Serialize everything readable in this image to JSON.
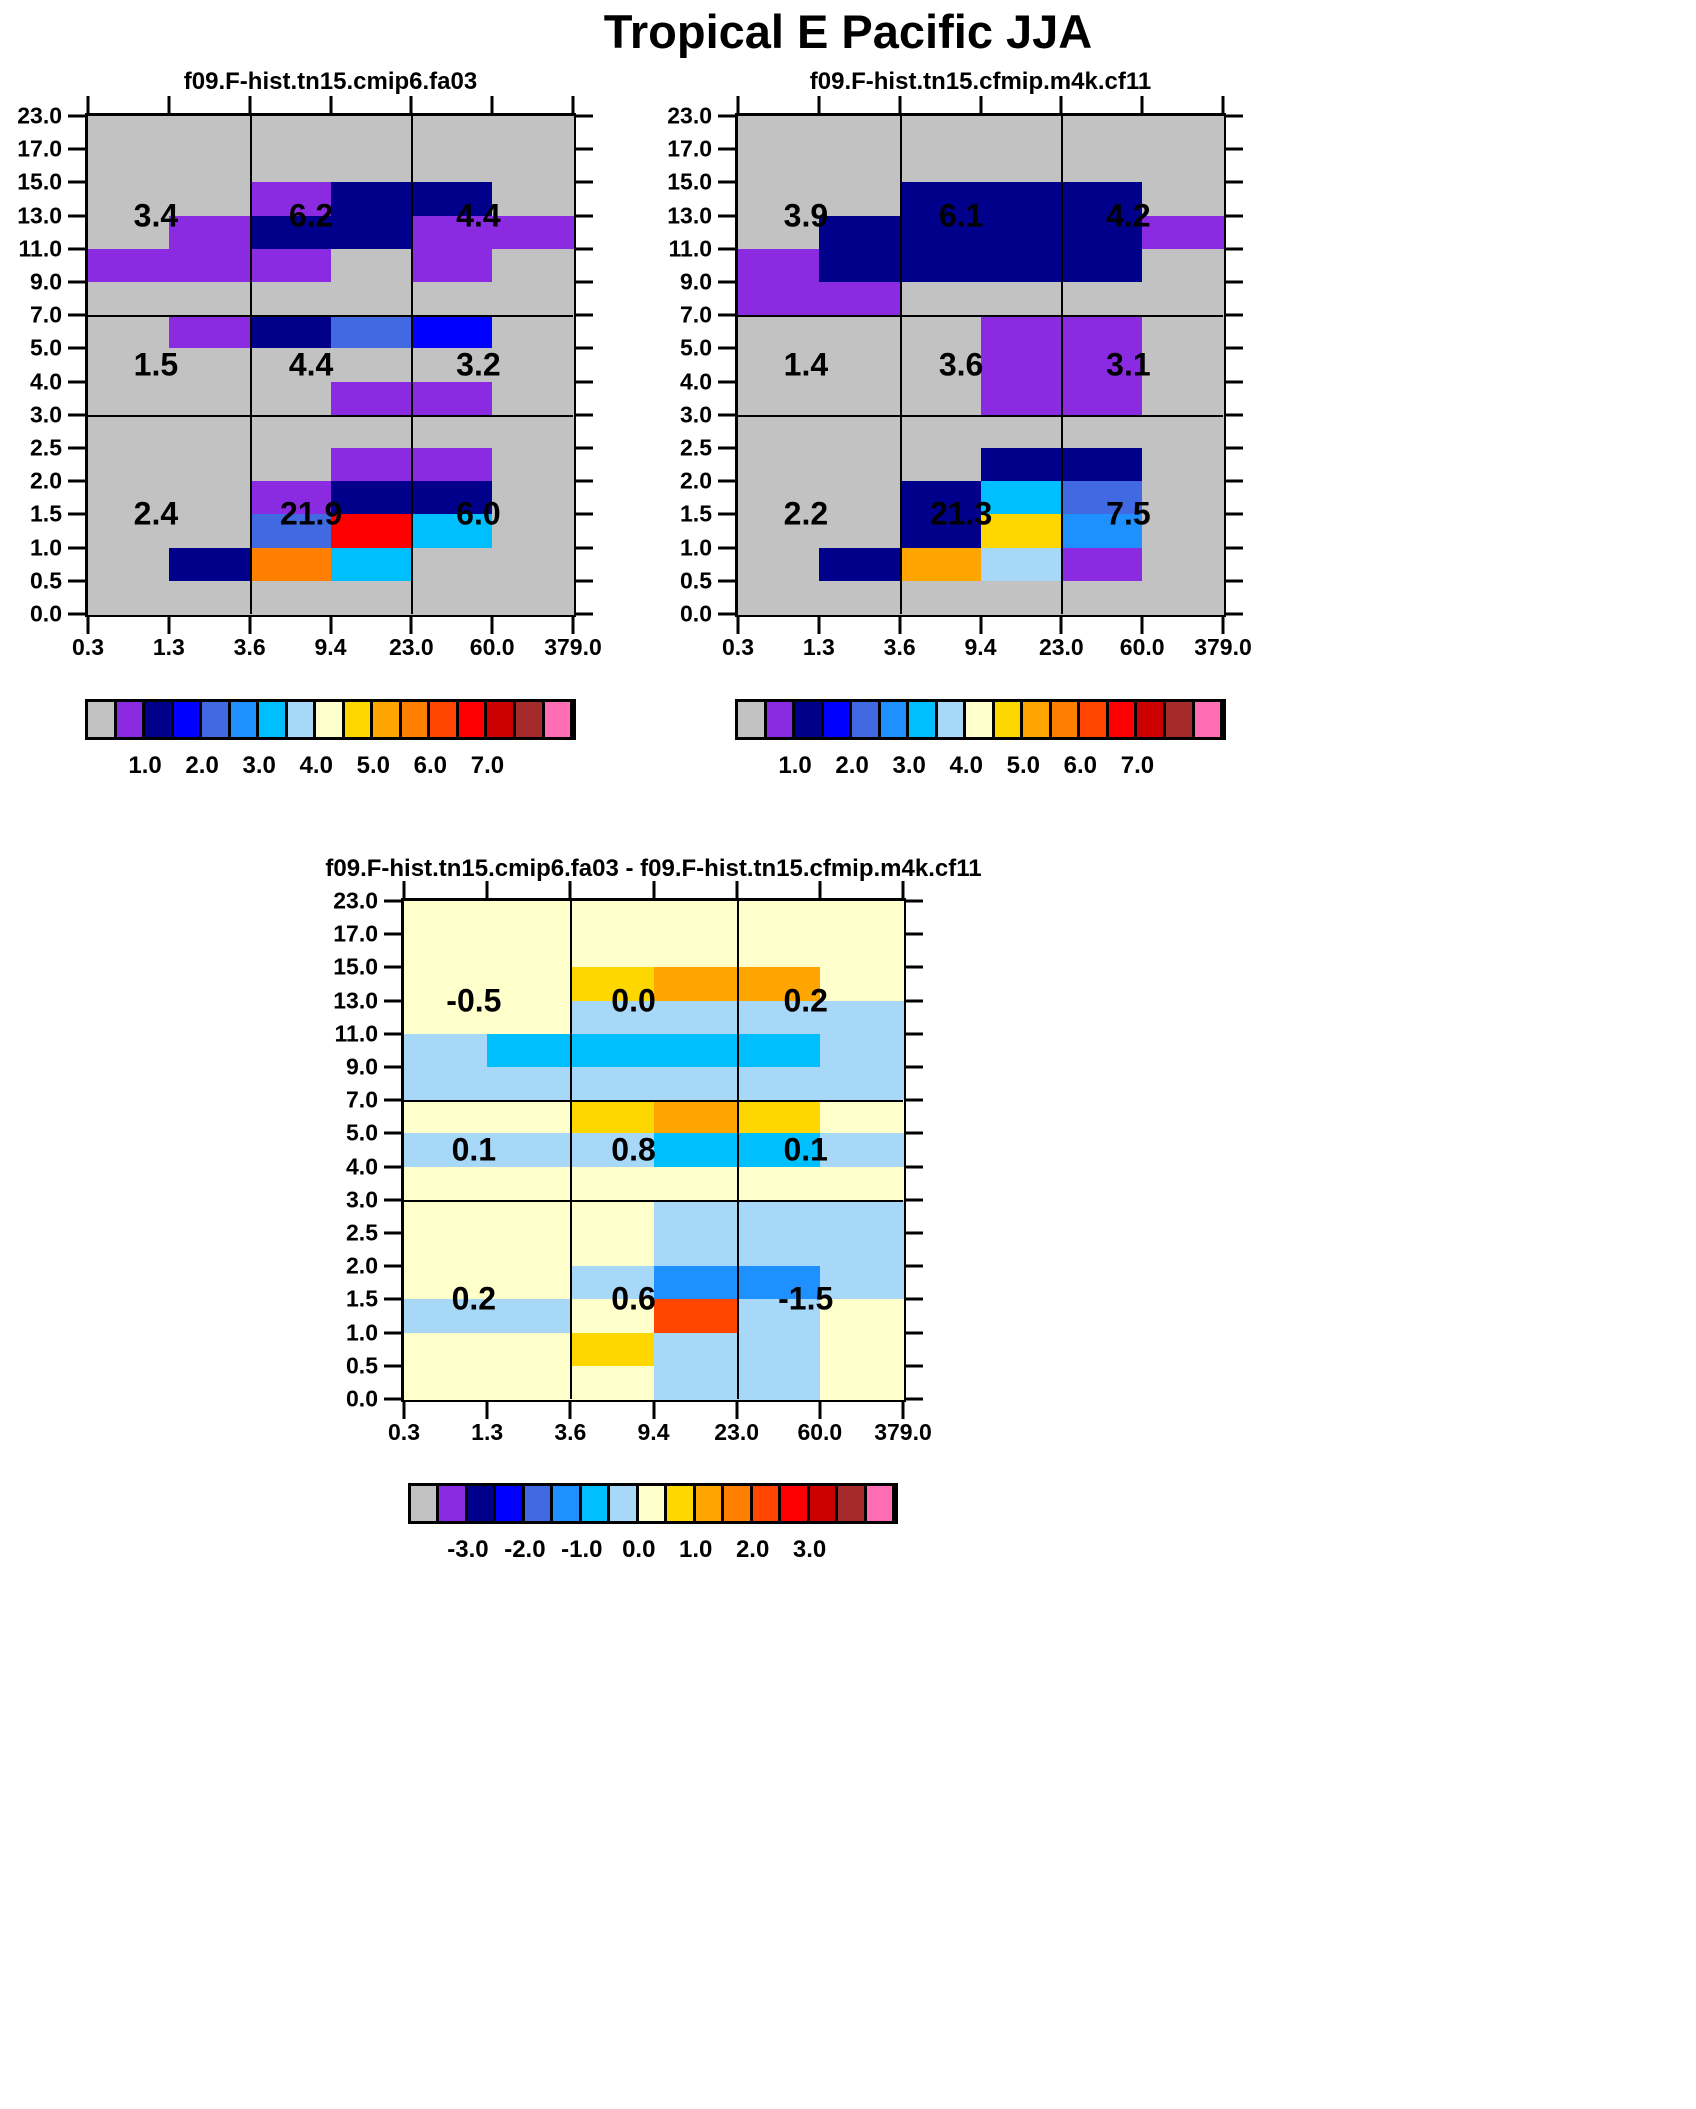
{
  "main_title": "Tropical E Pacific JJA",
  "palette": [
    "#c2c2c2",
    "#8a2be2",
    "#00008b",
    "#0000ff",
    "#4169e1",
    "#1e90ff",
    "#00bfff",
    "#a8d8f8",
    "#ffffcc",
    "#ffd700",
    "#ffa500",
    "#ff8000",
    "#ff4500",
    "#ff0000",
    "#cd0000",
    "#a52a2a",
    "#ff6eb4"
  ],
  "axes": {
    "y_label_values": [
      "23.0",
      "17.0",
      "15.0",
      "13.0",
      "11.0",
      "9.0",
      "7.0",
      "5.0",
      "4.0",
      "3.0",
      "2.5",
      "2.0",
      "1.5",
      "1.0",
      "0.5",
      "0.0"
    ],
    "x_label_values": [
      "0.3",
      "1.3",
      "3.6",
      "9.4",
      "23.0",
      "60.0",
      "379.0"
    ]
  },
  "chart_data": [
    {
      "type": "heatmap",
      "title": "f09.F-hist.tn15.cmip6.fa03",
      "x_bin_edges": [
        0.3,
        1.3,
        3.6,
        9.4,
        23.0,
        60.0,
        379.0
      ],
      "y_bin_edges": [
        0.0,
        0.5,
        1.0,
        1.5,
        2.0,
        2.5,
        3.0,
        4.0,
        5.0,
        7.0,
        9.0,
        11.0,
        13.0,
        15.0,
        17.0,
        23.0
      ],
      "region_totals_rows_top_to_bottom": [
        [
          "3.4",
          "6.2",
          "4.4"
        ],
        [
          "1.5",
          "4.4",
          "3.2"
        ],
        [
          "2.4",
          "21.9",
          "6.0"
        ]
      ],
      "cell_palette_index_rows_top_to_bottom": [
        [
          0,
          0,
          0,
          0,
          0,
          0
        ],
        [
          0,
          0,
          0,
          0,
          0,
          0
        ],
        [
          0,
          0,
          1,
          2,
          2,
          0
        ],
        [
          0,
          1,
          2,
          2,
          1,
          1
        ],
        [
          1,
          1,
          1,
          0,
          1,
          0
        ],
        [
          0,
          0,
          0,
          0,
          0,
          0
        ],
        [
          0,
          1,
          2,
          4,
          3,
          0
        ],
        [
          0,
          0,
          0,
          0,
          0,
          0
        ],
        [
          0,
          0,
          0,
          1,
          1,
          0
        ],
        [
          0,
          0,
          0,
          0,
          0,
          0
        ],
        [
          0,
          0,
          0,
          1,
          1,
          0
        ],
        [
          0,
          0,
          1,
          2,
          2,
          0
        ],
        [
          0,
          0,
          4,
          13,
          6,
          0
        ],
        [
          0,
          2,
          11,
          6,
          0,
          0
        ],
        [
          0,
          0,
          0,
          0,
          0,
          0
        ]
      ],
      "colorbar_tick_labels": [
        "1.0",
        "2.0",
        "3.0",
        "4.0",
        "5.0",
        "6.0",
        "7.0"
      ]
    },
    {
      "type": "heatmap",
      "title": "f09.F-hist.tn15.cfmip.m4k.cf11",
      "x_bin_edges": [
        0.3,
        1.3,
        3.6,
        9.4,
        23.0,
        60.0,
        379.0
      ],
      "y_bin_edges": [
        0.0,
        0.5,
        1.0,
        1.5,
        2.0,
        2.5,
        3.0,
        4.0,
        5.0,
        7.0,
        9.0,
        11.0,
        13.0,
        15.0,
        17.0,
        23.0
      ],
      "region_totals_rows_top_to_bottom": [
        [
          "3.9",
          "6.1",
          "4.2"
        ],
        [
          "1.4",
          "3.6",
          "3.1"
        ],
        [
          "2.2",
          "21.3",
          "7.5"
        ]
      ],
      "cell_palette_index_rows_top_to_bottom": [
        [
          0,
          0,
          0,
          0,
          0,
          0
        ],
        [
          0,
          0,
          0,
          0,
          0,
          0
        ],
        [
          0,
          0,
          2,
          2,
          2,
          0
        ],
        [
          0,
          2,
          2,
          2,
          2,
          1
        ],
        [
          1,
          2,
          2,
          2,
          2,
          0
        ],
        [
          1,
          1,
          0,
          0,
          0,
          0
        ],
        [
          0,
          0,
          0,
          1,
          1,
          0
        ],
        [
          0,
          0,
          0,
          1,
          1,
          0
        ],
        [
          0,
          0,
          0,
          1,
          1,
          0
        ],
        [
          0,
          0,
          0,
          0,
          0,
          0
        ],
        [
          0,
          0,
          0,
          2,
          2,
          0
        ],
        [
          0,
          0,
          2,
          6,
          4,
          0
        ],
        [
          0,
          0,
          2,
          9,
          5,
          0
        ],
        [
          0,
          2,
          10,
          7,
          1,
          0
        ],
        [
          0,
          0,
          0,
          0,
          0,
          0
        ]
      ],
      "colorbar_tick_labels": [
        "1.0",
        "2.0",
        "3.0",
        "4.0",
        "5.0",
        "6.0",
        "7.0"
      ]
    },
    {
      "type": "heatmap",
      "title": "f09.F-hist.tn15.cmip6.fa03 - f09.F-hist.tn15.cfmip.m4k.cf11",
      "x_bin_edges": [
        0.3,
        1.3,
        3.6,
        9.4,
        23.0,
        60.0,
        379.0
      ],
      "y_bin_edges": [
        0.0,
        0.5,
        1.0,
        1.5,
        2.0,
        2.5,
        3.0,
        4.0,
        5.0,
        7.0,
        9.0,
        11.0,
        13.0,
        15.0,
        17.0,
        23.0
      ],
      "region_totals_rows_top_to_bottom": [
        [
          "-0.5",
          "0.0",
          "0.2"
        ],
        [
          "0.1",
          "0.8",
          "0.1"
        ],
        [
          "0.2",
          "0.6",
          "-1.5"
        ]
      ],
      "cell_palette_index_rows_top_to_bottom": [
        [
          8,
          8,
          8,
          8,
          8,
          8
        ],
        [
          8,
          8,
          8,
          8,
          8,
          8
        ],
        [
          8,
          8,
          9,
          10,
          10,
          8
        ],
        [
          8,
          8,
          7,
          7,
          7,
          7
        ],
        [
          7,
          6,
          6,
          6,
          6,
          7
        ],
        [
          7,
          7,
          7,
          7,
          7,
          7
        ],
        [
          8,
          8,
          9,
          10,
          9,
          8
        ],
        [
          7,
          7,
          7,
          6,
          6,
          7
        ],
        [
          8,
          8,
          8,
          8,
          8,
          8
        ],
        [
          8,
          8,
          8,
          7,
          7,
          7
        ],
        [
          8,
          8,
          8,
          7,
          7,
          7
        ],
        [
          8,
          8,
          7,
          5,
          5,
          7
        ],
        [
          7,
          7,
          8,
          12,
          7,
          8
        ],
        [
          8,
          8,
          9,
          7,
          7,
          8
        ],
        [
          8,
          8,
          8,
          7,
          7,
          8
        ]
      ],
      "colorbar_tick_labels": [
        "-3.0",
        "-2.0",
        "-1.0",
        "0.0",
        "1.0",
        "2.0",
        "3.0"
      ]
    }
  ]
}
